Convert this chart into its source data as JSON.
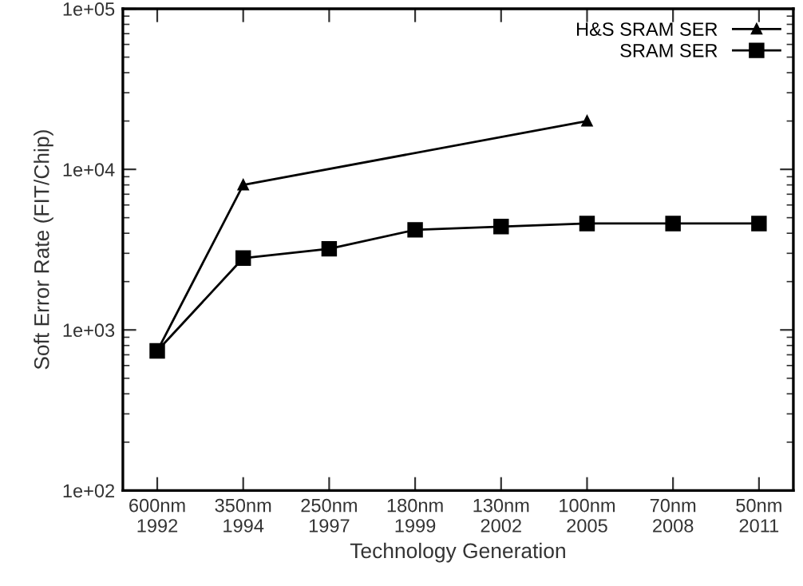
{
  "chart_data": {
    "type": "line",
    "xlabel": "Technology Generation",
    "ylabel": "Soft Error Rate (FIT/Chip)",
    "categories": [
      "600nm\n1992",
      "350nm\n1994",
      "250nm\n1997",
      "180nm\n1999",
      "130nm\n2002",
      "100nm\n2005",
      "70nm\n2008",
      "50nm\n2011"
    ],
    "log": "y",
    "ylim": [
      100,
      100000
    ],
    "yticks": [
      {
        "value": 100,
        "label": "1e+02"
      },
      {
        "value": 1000,
        "label": "1e+03"
      },
      {
        "value": 10000,
        "label": "1e+04"
      },
      {
        "value": 100000,
        "label": "1e+05"
      }
    ],
    "grid": false,
    "legend": "top right",
    "series": [
      {
        "name": "H&S SRAM SER",
        "color": "#000000",
        "marker": "triangle",
        "values": [
          740,
          8000,
          null,
          null,
          null,
          20000,
          null,
          null
        ]
      },
      {
        "name": "SRAM SER",
        "color": "#000000",
        "marker": "square",
        "values": [
          740,
          2800,
          3200,
          4200,
          4400,
          4600,
          4600,
          4600
        ]
      }
    ]
  }
}
